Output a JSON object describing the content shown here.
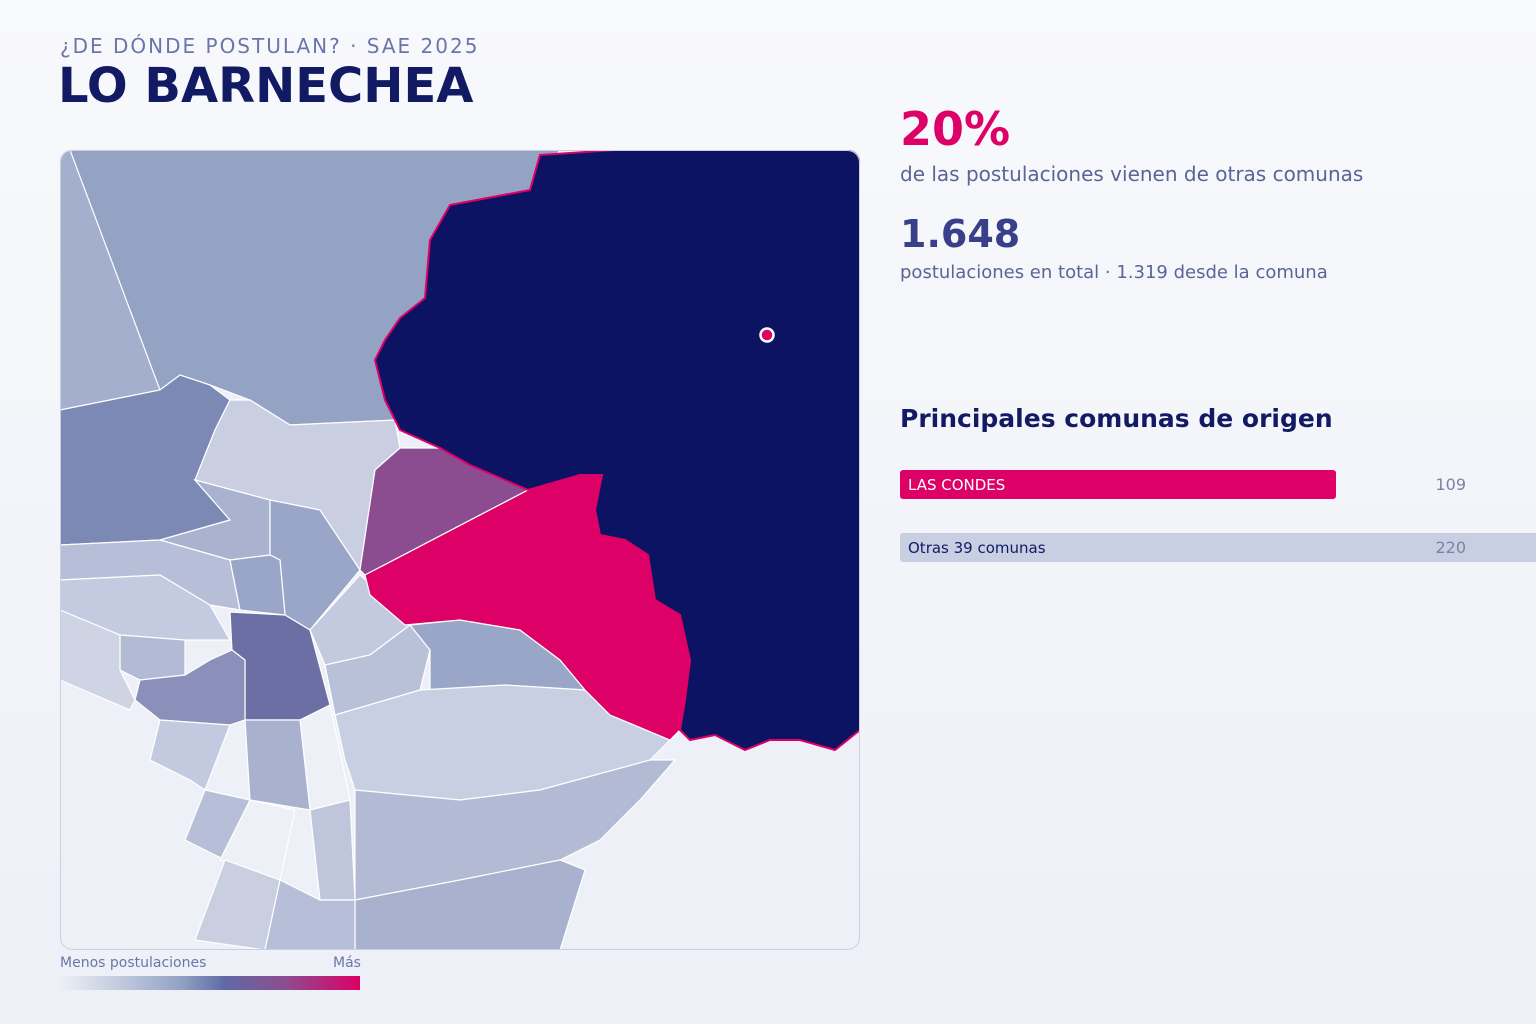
{
  "header": {
    "kicker": "¿DE DÓNDE POSTULAN? · SAE 2025",
    "title": "LO BARNECHEA"
  },
  "stats": {
    "share": "20%",
    "share_text": "de las postulaciones vienen de otras comunas",
    "total": "1.648",
    "total_text": "postulaciones en total · 1.319 desde la comuna"
  },
  "origins": {
    "title": "Principales comunas de origen",
    "items": [
      {
        "name": "LAS CONDES",
        "value": 109,
        "color": "#dc0067",
        "text_color": "#ffffff"
      },
      {
        "name": "Otras 39 comunas",
        "value": 220,
        "color": "#c8cfe2",
        "text_color": "#111a63"
      }
    ]
  },
  "legend": {
    "low": "Menos postulaciones",
    "high": "Más"
  }
}
